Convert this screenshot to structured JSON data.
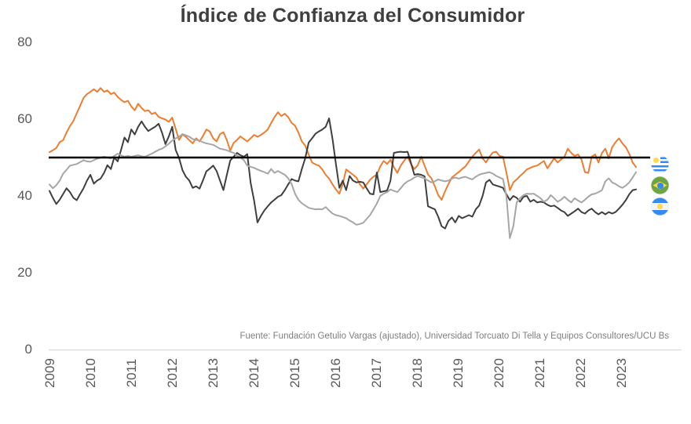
{
  "title": "Índice de Confianza del Consumidor",
  "source": "Fuente: Fundación Getulio Vargas (ajustado), Universidad Torcuato Di Tella y Equipos Consultores/UCU Bs",
  "legend": [
    {
      "country": "Uruguay",
      "icon": "uruguay-flag-icon"
    },
    {
      "country": "Brasil",
      "icon": "brazil-flag-icon"
    },
    {
      "country": "Argentina",
      "icon": "argentina-flag-icon"
    }
  ],
  "colors": {
    "brazil_line": "#ED7D31",
    "argentina_line": "#3F3F3F",
    "uruguay_line": "#A6A6A6",
    "reference_line": "#000000",
    "axis_line": "#D9D9D9",
    "tick_text": "#595959",
    "title_text": "#3F3F3F",
    "source_text": "#7F7F7F",
    "flag_blue": "#338AF3",
    "flag_yellow": "#FFDA44",
    "flag_green": "#6DA544"
  },
  "chart_data": {
    "type": "line",
    "title": "Índice de Confianza del Consumidor",
    "frequency": "monthly",
    "x_start": "2009-01",
    "x_end": "2023-05",
    "x_tick_labels": [
      "2009",
      "2010",
      "2011",
      "2012",
      "2013",
      "2014",
      "2015",
      "2016",
      "2017",
      "2018",
      "2019",
      "2020",
      "2021",
      "2022",
      "2023"
    ],
    "y_ticks": [
      0,
      20,
      40,
      60,
      80
    ],
    "y_range": [
      0,
      80
    ],
    "reference_line": 50,
    "grid": false,
    "legend_position": "right-flags",
    "series": [
      {
        "name": "Brasil",
        "color": "#ED7D31",
        "values": [
          51.4,
          51.9,
          52.5,
          54.0,
          54.5,
          56.5,
          58.2,
          59.5,
          61.5,
          63.5,
          65.5,
          66.5,
          67.1,
          67.8,
          67.1,
          68.1,
          67.1,
          67.5,
          66.5,
          66.9,
          65.8,
          65.0,
          64.4,
          64.8,
          63.3,
          62.3,
          64.0,
          62.9,
          62.1,
          62.3,
          61.3,
          61.7,
          60.6,
          60.2,
          59.9,
          59.3,
          60.4,
          57.5,
          54.6,
          56.0,
          55.4,
          54.5,
          53.7,
          55.0,
          54.2,
          55.6,
          57.3,
          56.8,
          55.0,
          54.2,
          56.1,
          56.6,
          54.6,
          51.8,
          53.8,
          54.6,
          55.5,
          54.8,
          54.2,
          55.0,
          55.9,
          55.4,
          55.9,
          56.5,
          57.3,
          59.0,
          60.5,
          61.8,
          60.8,
          61.4,
          60.5,
          59.0,
          58.3,
          56.5,
          54.2,
          53.1,
          50.8,
          48.7,
          48.2,
          47.9,
          46.9,
          45.5,
          44.5,
          43.0,
          41.7,
          40.6,
          43.1,
          46.9,
          46.2,
          45.5,
          44.8,
          43.1,
          41.9,
          43.0,
          44.2,
          45.0,
          45.6,
          47.7,
          49.1,
          48.3,
          49.4,
          47.5,
          46.0,
          47.9,
          49.2,
          50.2,
          48.3,
          47.0,
          48.0,
          50.2,
          47.9,
          45.6,
          44.6,
          42.5,
          40.2,
          39.0,
          41.2,
          43.1,
          44.8,
          45.5,
          46.2,
          47.0,
          47.7,
          49.0,
          50.2,
          51.2,
          52.1,
          49.8,
          48.7,
          50.2,
          51.3,
          51.5,
          50.4,
          50.2,
          46.0,
          41.5,
          43.5,
          44.3,
          45.2,
          46.0,
          46.9,
          47.3,
          47.7,
          47.9,
          48.5,
          49.1,
          47.2,
          48.5,
          49.8,
          48.7,
          49.5,
          50.2,
          52.3,
          51.2,
          50.4,
          50.8,
          49.5,
          46.2,
          46.0,
          50.2,
          50.8,
          48.7,
          51.2,
          52.3,
          49.8,
          52.7,
          54.0,
          55.0,
          53.7,
          52.7,
          51.0,
          48.7,
          47.5
        ]
      },
      {
        "name": "Argentina",
        "color": "#3F3F3F",
        "values": [
          41.3,
          39.5,
          37.9,
          39.0,
          40.5,
          42.0,
          41.0,
          39.5,
          38.9,
          40.5,
          42.0,
          44.0,
          45.5,
          43.2,
          44.0,
          44.5,
          46.0,
          48.0,
          47.0,
          50.0,
          49.0,
          52.0,
          55.2,
          54.0,
          57.3,
          56.0,
          58.0,
          59.4,
          58.0,
          56.9,
          57.5,
          58.0,
          58.8,
          56.5,
          53.5,
          55.5,
          58.0,
          52.0,
          49.9,
          46.7,
          45.0,
          44.0,
          42.1,
          42.5,
          41.9,
          44.0,
          46.4,
          47.1,
          47.9,
          46.5,
          44.0,
          41.5,
          45.4,
          49.2,
          50.2,
          51.2,
          50.6,
          50.2,
          50.9,
          43.4,
          38.8,
          33.1,
          34.8,
          36.2,
          37.3,
          38.3,
          39.0,
          39.8,
          40.2,
          41.5,
          43.0,
          44.4,
          44.0,
          43.8,
          47.0,
          49.8,
          53.9,
          55.0,
          56.2,
          56.8,
          57.3,
          58.0,
          60.2,
          54.8,
          48.3,
          42.1,
          44.0,
          41.5,
          45.2,
          44.0,
          43.5,
          43.7,
          43.5,
          42.0,
          40.6,
          40.4,
          46.1,
          41.0,
          41.2,
          41.4,
          44.0,
          51.2,
          51.4,
          51.5,
          51.4,
          51.5,
          48.6,
          45.5,
          45.7,
          45.5,
          45.1,
          37.3,
          36.9,
          36.5,
          34.6,
          32.1,
          31.5,
          33.5,
          34.4,
          33.1,
          34.8,
          34.2,
          34.6,
          35.0,
          34.6,
          36.5,
          37.5,
          40.0,
          43.5,
          44.2,
          43.0,
          42.7,
          42.4,
          42.1,
          40.4,
          38.9,
          40.0,
          39.5,
          38.5,
          39.8,
          40.0,
          38.5,
          39.0,
          38.3,
          38.5,
          38.3,
          37.7,
          37.3,
          37.5,
          36.9,
          36.2,
          35.8,
          34.8,
          35.4,
          36.0,
          36.7,
          35.8,
          35.4,
          36.2,
          36.7,
          35.8,
          35.2,
          35.8,
          35.2,
          35.8,
          35.4,
          35.8,
          36.7,
          37.7,
          38.9,
          40.4,
          41.5,
          41.7
        ]
      },
      {
        "name": "Uruguay",
        "color": "#A6A6A6",
        "values": [
          43.0,
          42.0,
          42.8,
          44.0,
          45.8,
          46.8,
          47.9,
          48.1,
          48.3,
          48.8,
          49.3,
          49.0,
          48.9,
          49.3,
          49.7,
          50.0,
          50.2,
          50.0,
          49.8,
          50.4,
          51.0,
          50.6,
          50.2,
          50.4,
          50.2,
          50.4,
          50.6,
          50.3,
          50.2,
          50.6,
          51.0,
          51.5,
          52.0,
          52.3,
          52.9,
          53.6,
          54.4,
          55.0,
          55.4,
          56.1,
          55.8,
          55.4,
          54.8,
          54.6,
          54.4,
          54.0,
          53.7,
          53.5,
          53.3,
          52.8,
          52.3,
          52.1,
          51.9,
          51.5,
          51.2,
          50.5,
          50.0,
          49.3,
          47.9,
          47.6,
          47.3,
          46.9,
          46.5,
          46.2,
          45.8,
          47.0,
          46.0,
          46.5,
          46.0,
          45.5,
          44.6,
          43.1,
          40.6,
          39.0,
          38.1,
          37.5,
          36.9,
          36.7,
          36.5,
          36.6,
          36.5,
          37.1,
          36.2,
          35.4,
          35.0,
          34.8,
          34.5,
          34.2,
          33.6,
          33.1,
          32.5,
          32.7,
          33.0,
          34.0,
          35.0,
          36.5,
          38.0,
          40.0,
          40.6,
          41.0,
          41.7,
          41.3,
          41.0,
          42.0,
          43.1,
          43.8,
          44.2,
          44.8,
          45.2,
          44.9,
          44.6,
          44.0,
          43.5,
          43.8,
          44.3,
          44.0,
          43.8,
          44.0,
          44.5,
          44.8,
          44.5,
          44.8,
          45.0,
          44.6,
          44.3,
          45.0,
          45.5,
          45.8,
          46.0,
          46.2,
          45.8,
          45.2,
          44.8,
          44.4,
          39.8,
          29.0,
          32.1,
          38.3,
          39.4,
          40.2,
          40.6,
          40.5,
          40.6,
          40.0,
          39.4,
          38.5,
          39.0,
          40.2,
          39.4,
          38.5,
          39.0,
          39.8,
          39.0,
          38.3,
          39.4,
          38.8,
          38.3,
          39.0,
          39.8,
          40.4,
          40.6,
          41.0,
          41.5,
          43.8,
          44.6,
          43.5,
          43.1,
          42.5,
          42.1,
          42.7,
          43.5,
          44.8,
          46.2
        ]
      }
    ]
  }
}
